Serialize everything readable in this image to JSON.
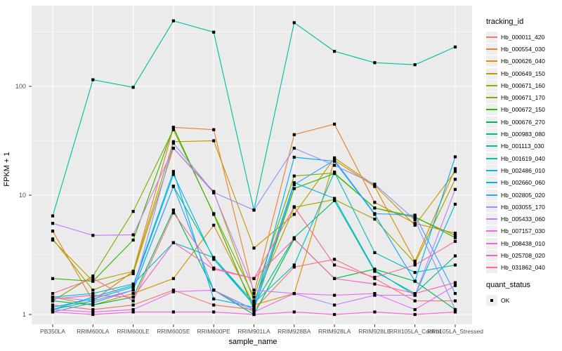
{
  "figure": {
    "y_axis": {
      "title": "FPKM + 1",
      "tick_labels": [
        "1",
        "10",
        "100"
      ]
    },
    "x_axis": {
      "title": "sample_name"
    },
    "legend": {
      "tracking": {
        "title": "tracking_id"
      },
      "quant": {
        "title": "quant_status",
        "items": [
          {
            "label": "OK"
          }
        ]
      }
    }
  },
  "chart_data": {
    "type": "line",
    "y_scale": "log10",
    "title": "",
    "xlabel": "sample_name",
    "ylabel": "FPKM + 1",
    "x": [
      "PB350LA",
      "RRIM600LA",
      "RRIM600LE",
      "RRIM600SE",
      "RRIM600PE",
      "RRIM901LA",
      "RRIM928BA",
      "RRIM928LA",
      "RRIM928LE",
      "RRII105LA_Control",
      "RRII105LA_Stressed"
    ],
    "y_ticks": [
      1,
      10,
      100
    ],
    "y_minor_ticks": [
      3.162,
      31.62,
      316.2
    ],
    "ylim": [
      1,
      450
    ],
    "grid": true,
    "legend_position": "right",
    "panel_bg": "#EBEBEB",
    "grid_color": "#FFFFFF",
    "point_color": "#000000",
    "point_shape": "square",
    "series": [
      {
        "name": "Hb_000011_420",
        "color": "#F8766D",
        "values": [
          1.2,
          1.1,
          1.2,
          1.6,
          1.2,
          1.1,
          2.5,
          2.9,
          2.0,
          1.3,
          1.3
        ]
      },
      {
        "name": "Hb_000554_030",
        "color": "#EA8331",
        "values": [
          5.0,
          1.3,
          2.3,
          42,
          40,
          1.5,
          36,
          45,
          8.7,
          5.8,
          4.8
        ]
      },
      {
        "name": "Hb_000626_040",
        "color": "#D89000",
        "values": [
          1.4,
          1.2,
          1.5,
          2.0,
          5.6,
          1.2,
          1.5,
          21,
          12.0,
          2.8,
          17.5
        ]
      },
      {
        "name": "Hb_000649_150",
        "color": "#C09B00",
        "values": [
          4.2,
          1.9,
          2.3,
          31,
          31.6,
          3.6,
          6.9,
          22,
          12.3,
          5.6,
          16.5
        ]
      },
      {
        "name": "Hb_000671_160",
        "color": "#A3A500",
        "values": [
          4.3,
          1.6,
          2.2,
          27,
          10.8,
          1.3,
          7.9,
          9.2,
          6.3,
          2.7,
          14.0
        ]
      },
      {
        "name": "Hb_000671_170",
        "color": "#7CAE00",
        "values": [
          1.3,
          2.1,
          7.3,
          40,
          7.0,
          1.4,
          15.0,
          16.0,
          7.8,
          6.5,
          4.6
        ]
      },
      {
        "name": "Hb_000672_150",
        "color": "#39B600",
        "values": [
          2.0,
          1.9,
          4.2,
          42,
          6.9,
          1.1,
          11.5,
          15.8,
          7.8,
          6.6,
          4.4
        ]
      },
      {
        "name": "Hb_000676_270",
        "color": "#00BB4E",
        "values": [
          1.3,
          1.2,
          1.4,
          7.5,
          1.6,
          1.0,
          4.3,
          2.0,
          2.4,
          1.9,
          1.1
        ]
      },
      {
        "name": "Hb_000983_080",
        "color": "#00BF7D",
        "values": [
          1.1,
          1.3,
          1.6,
          12.1,
          3.0,
          1.2,
          4.4,
          9.0,
          2.3,
          1.5,
          3.1
        ]
      },
      {
        "name": "Hb_001113_030",
        "color": "#00C1A3",
        "values": [
          6.7,
          115,
          98,
          400,
          315,
          7.5,
          385,
          210,
          165,
          158,
          230
        ]
      },
      {
        "name": "Hb_001619_040",
        "color": "#00BFC4",
        "values": [
          1.4,
          1.5,
          1.8,
          4.0,
          3.0,
          1.25,
          2.6,
          16.3,
          3.3,
          2.25,
          2.6
        ]
      },
      {
        "name": "Hb_002486_010",
        "color": "#00BAE0",
        "values": [
          1.15,
          1.35,
          1.7,
          15.5,
          2.9,
          1.2,
          13.0,
          9.4,
          2.35,
          1.45,
          8.4
        ]
      },
      {
        "name": "Hb_002660_060",
        "color": "#00B0F6",
        "values": [
          1.1,
          1.4,
          1.75,
          16.5,
          1.35,
          1.15,
          22.3,
          20.5,
          6.9,
          1.9,
          22.5
        ]
      },
      {
        "name": "Hb_002805_020",
        "color": "#35A2FF",
        "values": [
          1.05,
          1.25,
          1.6,
          12.0,
          1.6,
          1.1,
          12.5,
          21.0,
          7.0,
          6.8,
          1.5
        ]
      },
      {
        "name": "Hb_003055_170",
        "color": "#9590FF",
        "values": [
          1.4,
          1.3,
          1.6,
          30,
          10.6,
          7.5,
          27,
          18.8,
          12.6,
          6.2,
          1.1
        ]
      },
      {
        "name": "Hb_005433_060",
        "color": "#C77CFF",
        "values": [
          5.8,
          4.6,
          4.65,
          27,
          10.5,
          1.6,
          1.5,
          1.2,
          1.45,
          1.45,
          11.3
        ]
      },
      {
        "name": "Hb_007157_030",
        "color": "#E76BF3",
        "values": [
          1.1,
          1.05,
          1.1,
          1.55,
          1.6,
          1.05,
          1.5,
          1.45,
          1.5,
          1.1,
          1.75
        ]
      },
      {
        "name": "Hb_008438_010",
        "color": "#FA62DB",
        "values": [
          1.05,
          1.0,
          1.05,
          1.05,
          1.05,
          1.0,
          1.05,
          1.0,
          1.05,
          1.0,
          1.05
        ]
      },
      {
        "name": "Hb_025708_020",
        "color": "#FF62BC",
        "values": [
          1.35,
          1.45,
          1.4,
          4.0,
          2.4,
          2.0,
          4.3,
          2.0,
          1.8,
          1.5,
          1.85
        ]
      },
      {
        "name": "Hb_031862_040",
        "color": "#FF6A98",
        "values": [
          1.5,
          2.0,
          1.3,
          7.1,
          2.45,
          2.0,
          8.0,
          2.6,
          2.05,
          2.6,
          4.1
        ]
      }
    ]
  }
}
